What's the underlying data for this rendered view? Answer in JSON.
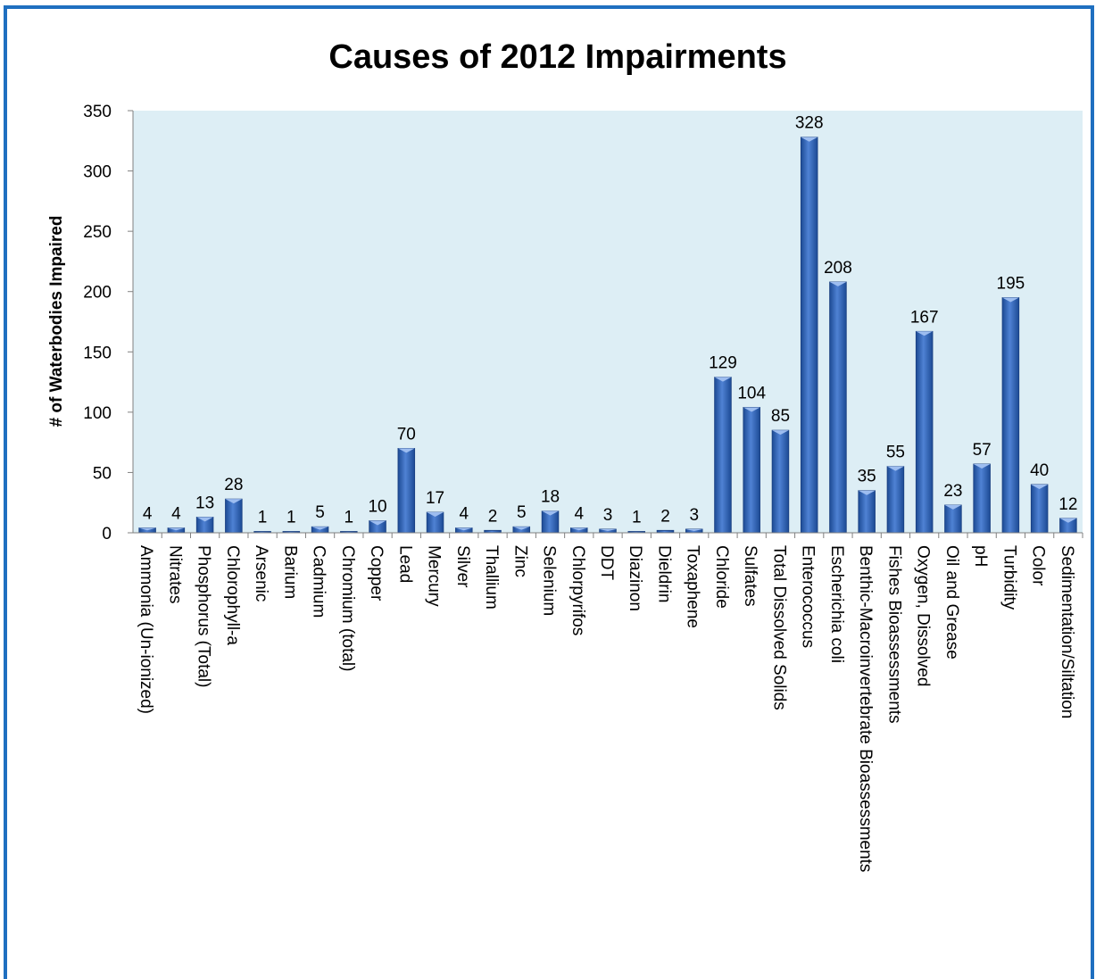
{
  "colors": {
    "frame_border": "#1f6fc0",
    "plot_background": "#ddeef5",
    "bar_fill": "#2f5fb0",
    "bar_highlight": "#6f9ae0",
    "axis": "#808080"
  },
  "chart_data": {
    "type": "bar",
    "title": "Causes of 2012 Impairments",
    "xlabel": "",
    "ylabel": "# of Waterbodies Impaired",
    "ylim": [
      0,
      350
    ],
    "yticks": [
      0,
      50,
      100,
      150,
      200,
      250,
      300,
      350
    ],
    "grid": false,
    "categories": [
      "Ammonia (Un-ionized)",
      "Nitrates",
      "Phosphorus (Total)",
      "Chlorophyll-a",
      "Arsenic",
      "Barium",
      "Cadmium",
      "Chromium (total)",
      "Copper",
      "Lead",
      "Mercury",
      "Silver",
      "Thallium",
      "Zinc",
      "Selenium",
      "Chlorpyrifos",
      "DDT",
      "Diazinon",
      "Dieldrin",
      "Toxaphene",
      "Chloride",
      "Sulfates",
      "Total Dissolved Solids",
      "Enterococcus",
      "Escherichia coli",
      "Benthic-Macroinvertebrate Bioassessments",
      "Fishes Bioassessments",
      "Oxygen, Dissolved",
      "Oil and Grease",
      "pH",
      "Turbidity",
      "Color",
      "Sedimentation/Siltation"
    ],
    "values": [
      4,
      4,
      13,
      28,
      1,
      1,
      5,
      1,
      10,
      70,
      17,
      4,
      2,
      5,
      18,
      4,
      3,
      1,
      2,
      3,
      129,
      104,
      85,
      328,
      208,
      35,
      55,
      167,
      23,
      57,
      195,
      40,
      12
    ]
  }
}
